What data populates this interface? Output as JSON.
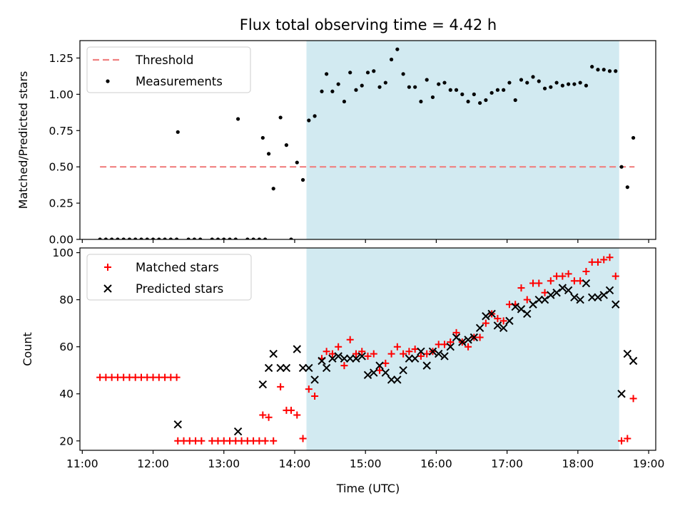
{
  "figure": {
    "title": "Flux total observing time = 4.42 h",
    "xlabel": "Time (UTC)"
  },
  "colors": {
    "shade": "#add8e6",
    "threshold": "#f08080",
    "measurements": "#000000",
    "matched": "#ff0000",
    "predicted": "#000000"
  },
  "chart_data": [
    {
      "type": "scatter",
      "panel": "top",
      "ylabel": "Matched/Predicted stars",
      "xlim": [
        "10:58",
        "19:06"
      ],
      "ylim": [
        0,
        1.37
      ],
      "x_ticks": [
        "11:00",
        "12:00",
        "13:00",
        "14:00",
        "15:00",
        "16:00",
        "17:00",
        "18:00",
        "19:00"
      ],
      "y_ticks": [
        "0.00",
        "0.25",
        "0.50",
        "0.75",
        "1.00",
        "1.25"
      ],
      "shaded_span": [
        "14:10",
        "18:35"
      ],
      "legend": {
        "position": "upper-left",
        "entries": [
          "Threshold",
          "Measurements"
        ]
      },
      "threshold": {
        "name": "Threshold",
        "y": 0.5,
        "x_range": [
          "11:15",
          "18:48"
        ],
        "style": "dashed"
      },
      "series": [
        {
          "name": "Measurements",
          "marker": "dot",
          "points": [
            [
              "11:15",
              0.0
            ],
            [
              "11:20",
              0.0
            ],
            [
              "11:25",
              0.0
            ],
            [
              "11:30",
              0.0
            ],
            [
              "11:35",
              0.0
            ],
            [
              "11:40",
              0.0
            ],
            [
              "11:45",
              0.0
            ],
            [
              "11:50",
              0.0
            ],
            [
              "11:55",
              0.0
            ],
            [
              "12:00",
              0.0
            ],
            [
              "12:05",
              0.0
            ],
            [
              "12:10",
              0.0
            ],
            [
              "12:15",
              0.0
            ],
            [
              "12:20",
              0.0
            ],
            [
              "12:21",
              0.74
            ],
            [
              "12:30",
              0.0
            ],
            [
              "12:35",
              0.0
            ],
            [
              "12:40",
              0.0
            ],
            [
              "12:50",
              0.0
            ],
            [
              "12:55",
              0.0
            ],
            [
              "13:00",
              0.0
            ],
            [
              "13:05",
              0.0
            ],
            [
              "13:10",
              0.0
            ],
            [
              "13:12",
              0.83
            ],
            [
              "13:20",
              0.0
            ],
            [
              "13:25",
              0.0
            ],
            [
              "13:30",
              0.0
            ],
            [
              "13:35",
              0.0
            ],
            [
              "13:33",
              0.7
            ],
            [
              "13:38",
              0.59
            ],
            [
              "13:42",
              0.35
            ],
            [
              "13:48",
              0.84
            ],
            [
              "13:53",
              0.65
            ],
            [
              "13:57",
              0.0
            ],
            [
              "14:02",
              0.53
            ],
            [
              "14:07",
              0.41
            ],
            [
              "14:12",
              0.82
            ],
            [
              "14:17",
              0.85
            ],
            [
              "14:23",
              1.02
            ],
            [
              "14:27",
              1.14
            ],
            [
              "14:32",
              1.02
            ],
            [
              "14:37",
              1.07
            ],
            [
              "14:42",
              0.95
            ],
            [
              "14:47",
              1.15
            ],
            [
              "14:52",
              1.03
            ],
            [
              "14:57",
              1.06
            ],
            [
              "15:02",
              1.15
            ],
            [
              "15:07",
              1.16
            ],
            [
              "15:12",
              1.05
            ],
            [
              "15:17",
              1.08
            ],
            [
              "15:22",
              1.24
            ],
            [
              "15:27",
              1.31
            ],
            [
              "15:32",
              1.14
            ],
            [
              "15:37",
              1.05
            ],
            [
              "15:42",
              1.05
            ],
            [
              "15:47",
              0.95
            ],
            [
              "15:52",
              1.1
            ],
            [
              "15:57",
              0.98
            ],
            [
              "16:02",
              1.07
            ],
            [
              "16:07",
              1.08
            ],
            [
              "16:12",
              1.03
            ],
            [
              "16:17",
              1.03
            ],
            [
              "16:22",
              1.0
            ],
            [
              "16:27",
              0.95
            ],
            [
              "16:32",
              1.0
            ],
            [
              "16:37",
              0.94
            ],
            [
              "16:42",
              0.96
            ],
            [
              "16:47",
              1.01
            ],
            [
              "16:52",
              1.03
            ],
            [
              "16:57",
              1.03
            ],
            [
              "17:02",
              1.08
            ],
            [
              "17:07",
              0.96
            ],
            [
              "17:12",
              1.1
            ],
            [
              "17:17",
              1.08
            ],
            [
              "17:22",
              1.12
            ],
            [
              "17:27",
              1.09
            ],
            [
              "17:32",
              1.04
            ],
            [
              "17:37",
              1.05
            ],
            [
              "17:42",
              1.08
            ],
            [
              "17:47",
              1.06
            ],
            [
              "17:52",
              1.07
            ],
            [
              "17:57",
              1.07
            ],
            [
              "18:02",
              1.08
            ],
            [
              "18:07",
              1.06
            ],
            [
              "18:12",
              1.19
            ],
            [
              "18:17",
              1.17
            ],
            [
              "18:22",
              1.17
            ],
            [
              "18:27",
              1.16
            ],
            [
              "18:32",
              1.16
            ],
            [
              "18:37",
              0.5
            ],
            [
              "18:42",
              0.36
            ],
            [
              "18:47",
              0.7
            ]
          ]
        }
      ]
    },
    {
      "type": "scatter",
      "panel": "bottom",
      "ylabel": "Count",
      "xlim": [
        "10:58",
        "19:06"
      ],
      "ylim": [
        16,
        102
      ],
      "x_ticks": [
        "11:00",
        "12:00",
        "13:00",
        "14:00",
        "15:00",
        "16:00",
        "17:00",
        "18:00",
        "19:00"
      ],
      "y_ticks": [
        "20",
        "40",
        "60",
        "80",
        "100"
      ],
      "shaded_span": [
        "14:10",
        "18:35"
      ],
      "legend": {
        "position": "upper-left",
        "entries": [
          "Matched stars",
          "Predicted stars"
        ]
      },
      "series": [
        {
          "name": "Matched stars",
          "marker": "plus",
          "points": [
            [
              "11:15",
              47
            ],
            [
              "11:20",
              47
            ],
            [
              "11:25",
              47
            ],
            [
              "11:30",
              47
            ],
            [
              "11:35",
              47
            ],
            [
              "11:40",
              47
            ],
            [
              "11:45",
              47
            ],
            [
              "11:50",
              47
            ],
            [
              "11:55",
              47
            ],
            [
              "12:00",
              47
            ],
            [
              "12:05",
              47
            ],
            [
              "12:10",
              47
            ],
            [
              "12:15",
              47
            ],
            [
              "12:20",
              47
            ],
            [
              "12:21",
              20
            ],
            [
              "12:26",
              20
            ],
            [
              "12:31",
              20
            ],
            [
              "12:36",
              20
            ],
            [
              "12:41",
              20
            ],
            [
              "12:50",
              20
            ],
            [
              "12:55",
              20
            ],
            [
              "13:00",
              20
            ],
            [
              "13:05",
              20
            ],
            [
              "13:10",
              20
            ],
            [
              "13:15",
              20
            ],
            [
              "13:20",
              20
            ],
            [
              "13:25",
              20
            ],
            [
              "13:30",
              20
            ],
            [
              "13:35",
              20
            ],
            [
              "13:33",
              31
            ],
            [
              "13:38",
              30
            ],
            [
              "13:42",
              20
            ],
            [
              "13:48",
              43
            ],
            [
              "13:53",
              33
            ],
            [
              "13:57",
              33
            ],
            [
              "14:02",
              31
            ],
            [
              "14:07",
              21
            ],
            [
              "14:12",
              42
            ],
            [
              "14:17",
              39
            ],
            [
              "14:23",
              55
            ],
            [
              "14:27",
              58
            ],
            [
              "14:32",
              57
            ],
            [
              "14:37",
              60
            ],
            [
              "14:42",
              52
            ],
            [
              "14:47",
              63
            ],
            [
              "14:52",
              57
            ],
            [
              "14:57",
              58
            ],
            [
              "15:02",
              56
            ],
            [
              "15:07",
              57
            ],
            [
              "15:12",
              50
            ],
            [
              "15:17",
              53
            ],
            [
              "15:22",
              57
            ],
            [
              "15:27",
              60
            ],
            [
              "15:32",
              57
            ],
            [
              "15:37",
              58
            ],
            [
              "15:42",
              59
            ],
            [
              "15:47",
              56
            ],
            [
              "15:52",
              57
            ],
            [
              "15:57",
              58
            ],
            [
              "16:02",
              61
            ],
            [
              "16:07",
              61
            ],
            [
              "16:12",
              62
            ],
            [
              "16:17",
              66
            ],
            [
              "16:22",
              62
            ],
            [
              "16:27",
              60
            ],
            [
              "16:32",
              64
            ],
            [
              "16:37",
              64
            ],
            [
              "16:42",
              70
            ],
            [
              "16:47",
              74
            ],
            [
              "16:52",
              72
            ],
            [
              "16:57",
              71
            ],
            [
              "17:02",
              78
            ],
            [
              "17:07",
              78
            ],
            [
              "17:12",
              85
            ],
            [
              "17:17",
              80
            ],
            [
              "17:22",
              87
            ],
            [
              "17:27",
              87
            ],
            [
              "17:32",
              83
            ],
            [
              "17:37",
              88
            ],
            [
              "17:42",
              90
            ],
            [
              "17:47",
              90
            ],
            [
              "17:52",
              91
            ],
            [
              "17:57",
              88
            ],
            [
              "18:02",
              88
            ],
            [
              "18:07",
              92
            ],
            [
              "18:12",
              96
            ],
            [
              "18:17",
              96
            ],
            [
              "18:22",
              97
            ],
            [
              "18:27",
              98
            ],
            [
              "18:32",
              90
            ],
            [
              "18:37",
              20
            ],
            [
              "18:42",
              21
            ],
            [
              "18:47",
              38
            ]
          ]
        },
        {
          "name": "Predicted stars",
          "marker": "cross",
          "points": [
            [
              "12:21",
              27
            ],
            [
              "13:12",
              24
            ],
            [
              "13:33",
              44
            ],
            [
              "13:38",
              51
            ],
            [
              "13:42",
              57
            ],
            [
              "13:48",
              51
            ],
            [
              "13:53",
              51
            ],
            [
              "14:02",
              59
            ],
            [
              "14:07",
              51
            ],
            [
              "14:12",
              51
            ],
            [
              "14:17",
              46
            ],
            [
              "14:23",
              54
            ],
            [
              "14:27",
              51
            ],
            [
              "14:32",
              55
            ],
            [
              "14:37",
              56
            ],
            [
              "14:42",
              55
            ],
            [
              "14:47",
              55
            ],
            [
              "14:52",
              55
            ],
            [
              "14:57",
              56
            ],
            [
              "15:02",
              48
            ],
            [
              "15:07",
              49
            ],
            [
              "15:12",
              52
            ],
            [
              "15:17",
              49
            ],
            [
              "15:22",
              46
            ],
            [
              "15:27",
              46
            ],
            [
              "15:32",
              50
            ],
            [
              "15:37",
              55
            ],
            [
              "15:42",
              55
            ],
            [
              "15:47",
              58
            ],
            [
              "15:52",
              52
            ],
            [
              "15:57",
              58
            ],
            [
              "16:02",
              57
            ],
            [
              "16:07",
              56
            ],
            [
              "16:12",
              60
            ],
            [
              "16:17",
              64
            ],
            [
              "16:22",
              62
            ],
            [
              "16:27",
              63
            ],
            [
              "16:32",
              64
            ],
            [
              "16:37",
              68
            ],
            [
              "16:42",
              73
            ],
            [
              "16:47",
              74
            ],
            [
              "16:52",
              69
            ],
            [
              "16:57",
              68
            ],
            [
              "17:02",
              71
            ],
            [
              "17:07",
              77
            ],
            [
              "17:12",
              76
            ],
            [
              "17:17",
              74
            ],
            [
              "17:22",
              78
            ],
            [
              "17:27",
              80
            ],
            [
              "17:32",
              80
            ],
            [
              "17:37",
              82
            ],
            [
              "17:42",
              83
            ],
            [
              "17:47",
              85
            ],
            [
              "17:52",
              84
            ],
            [
              "17:57",
              81
            ],
            [
              "18:02",
              80
            ],
            [
              "18:07",
              87
            ],
            [
              "18:12",
              81
            ],
            [
              "18:17",
              81
            ],
            [
              "18:22",
              82
            ],
            [
              "18:27",
              84
            ],
            [
              "18:32",
              78
            ],
            [
              "18:37",
              40
            ],
            [
              "18:42",
              57
            ],
            [
              "18:47",
              54
            ]
          ]
        }
      ]
    }
  ]
}
